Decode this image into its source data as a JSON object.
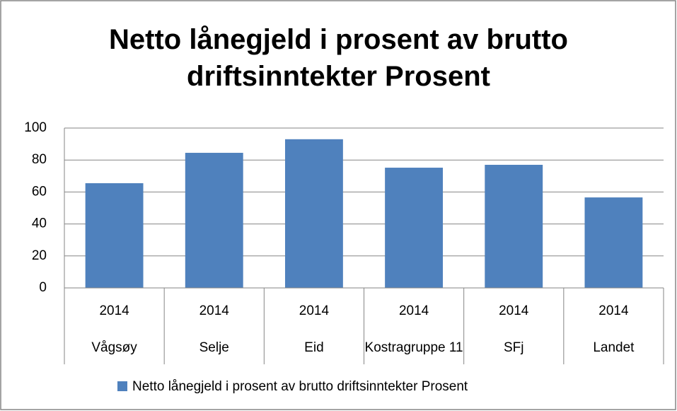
{
  "chart_data": {
    "type": "bar",
    "title": "Netto lånegjeld i prosent av brutto driftsinntekter Prosent",
    "categories": [
      "Vågsøy",
      "Selje",
      "Eid",
      "Kostragruppe 11",
      "SFj",
      "Landet"
    ],
    "periods": [
      "2014",
      "2014",
      "2014",
      "2014",
      "2014",
      "2014"
    ],
    "series": [
      {
        "name": "Netto lånegjeld i prosent av brutto driftsinntekter Prosent",
        "color": "#4f81bd",
        "values": [
          65.5,
          84.5,
          93,
          75.2,
          77,
          56.6
        ]
      }
    ],
    "ylim": [
      0,
      100
    ],
    "yticks": [
      0,
      20,
      40,
      60,
      80,
      100
    ],
    "grid": true,
    "legend": "bottom"
  }
}
